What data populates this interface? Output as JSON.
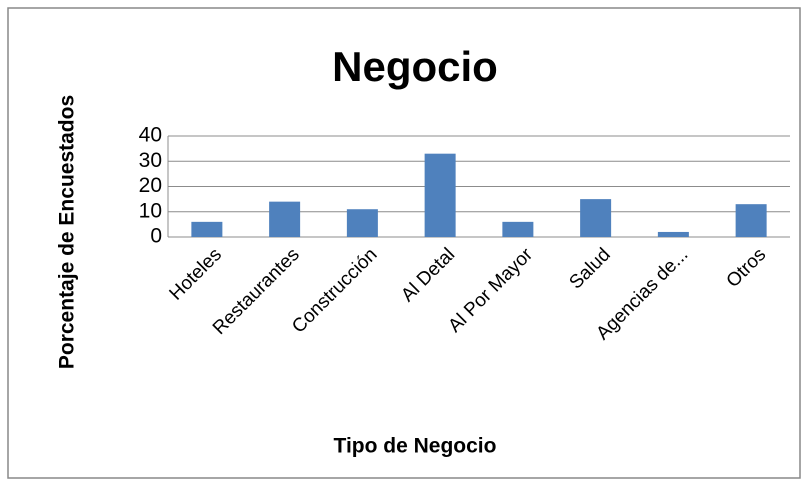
{
  "chart_data": {
    "type": "bar",
    "title": "Negocio",
    "x_label": "Tipo de Negocio",
    "y_label": "Porcentaje de Encuestados",
    "categories": [
      "Hoteles",
      "Restaurantes",
      "Construcción",
      "Al Detal",
      "Al Por Mayor",
      "Salud",
      "Agencias de...",
      "Otros"
    ],
    "values": [
      6,
      14,
      11,
      33,
      6,
      15,
      2,
      13
    ],
    "color": "#4f81bd",
    "ylim": [
      0,
      40
    ],
    "yticks": [
      0,
      10,
      20,
      30,
      40
    ],
    "grid": true
  }
}
